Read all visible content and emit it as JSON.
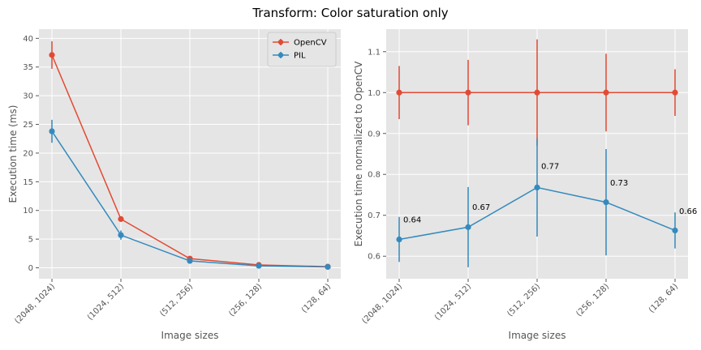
{
  "figure_title": "Transform: Color saturation only",
  "colors": {
    "opencv": "#E24A33",
    "pil": "#348ABD",
    "panel_bg": "#E5E5E5",
    "grid": "#ffffff",
    "text": "#555555"
  },
  "chart_data": [
    {
      "type": "line",
      "title": "",
      "xlabel": "Image sizes",
      "ylabel": "Execution time (ms)",
      "categories": [
        "(2048, 1024)",
        "(1024, 512)",
        "(512, 256)",
        "(256, 128)",
        "(128, 64)"
      ],
      "ylim": [
        -1.9,
        41.6
      ],
      "yticks": [
        0,
        5,
        10,
        15,
        20,
        25,
        30,
        35,
        40
      ],
      "ytick_labels": [
        "0",
        "5",
        "10",
        "15",
        "20",
        "25",
        "30",
        "35",
        "40"
      ],
      "grid": true,
      "legend": {
        "placement": "top-right",
        "entries": [
          "OpenCV",
          "PIL"
        ]
      },
      "series": [
        {
          "name": "OpenCV",
          "color": "#E24A33",
          "values": [
            37.1,
            8.5,
            1.6,
            0.5,
            0.2
          ],
          "err": [
            2.4,
            0.4,
            0.15,
            0.05,
            0.02
          ]
        },
        {
          "name": "PIL",
          "color": "#348ABD",
          "values": [
            23.8,
            5.7,
            1.2,
            0.35,
            0.15
          ],
          "err": [
            2.0,
            0.8,
            0.2,
            0.1,
            0.02
          ]
        }
      ]
    },
    {
      "type": "line",
      "title": "",
      "xlabel": "Image sizes",
      "ylabel": "Execution time normalized to OpenCV",
      "categories": [
        "(2048, 1024)",
        "(1024, 512)",
        "(512, 256)",
        "(256, 128)",
        "(128, 64)"
      ],
      "ylim": [
        0.545,
        1.155
      ],
      "yticks": [
        0.6,
        0.7,
        0.8,
        0.9,
        1.0,
        1.1
      ],
      "ytick_labels": [
        "0.6",
        "0.7",
        "0.8",
        "0.9",
        "1.0",
        "1.1"
      ],
      "grid": true,
      "series": [
        {
          "name": "OpenCV",
          "color": "#E24A33",
          "values": [
            1.0,
            1.0,
            1.0,
            1.0,
            1.0
          ],
          "err": [
            0.065,
            0.08,
            0.13,
            0.095,
            0.057
          ]
        },
        {
          "name": "PIL",
          "color": "#348ABD",
          "values": [
            0.641,
            0.671,
            0.768,
            0.732,
            0.663
          ],
          "err": [
            0.055,
            0.098,
            0.12,
            0.13,
            0.044
          ]
        }
      ],
      "annotations": [
        {
          "text": "0.64",
          "x": 0,
          "y": 0.69
        },
        {
          "text": "0.67",
          "x": 1,
          "y": 0.72
        },
        {
          "text": "0.77",
          "x": 2,
          "y": 0.82
        },
        {
          "text": "0.73",
          "x": 3,
          "y": 0.78
        },
        {
          "text": "0.66",
          "x": 4,
          "y": 0.71
        }
      ]
    }
  ]
}
